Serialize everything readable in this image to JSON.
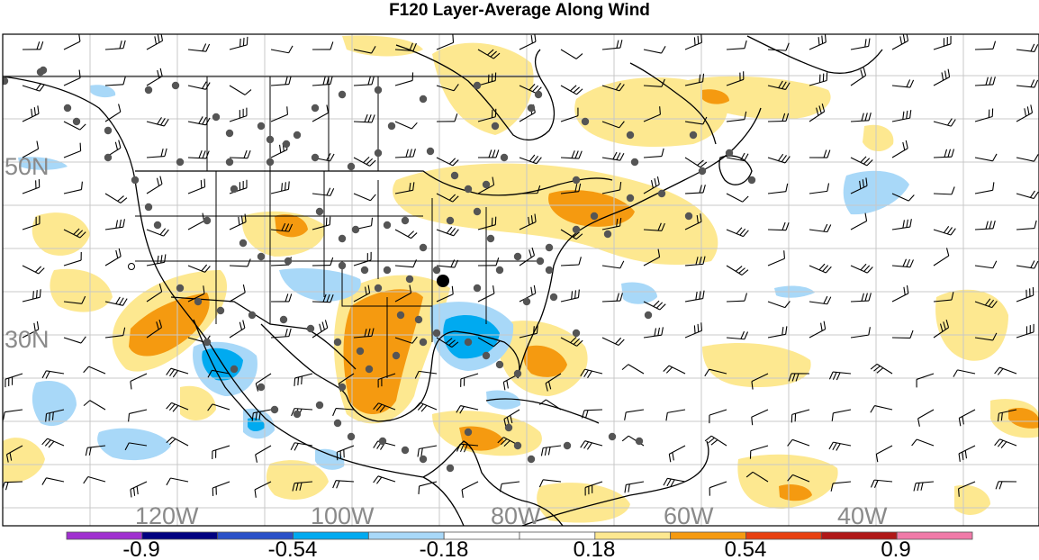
{
  "title": "F120 Layer-Average Along Wind",
  "map": {
    "lat_labels": [
      {
        "text": "50N",
        "lat": 50
      },
      {
        "text": "30N",
        "lat": 30
      }
    ],
    "lon_labels": [
      {
        "text": "120W",
        "lon": -120
      },
      {
        "text": "100W",
        "lon": -100
      },
      {
        "text": "80W",
        "lon": -80
      },
      {
        "text": "60W",
        "lon": -60
      },
      {
        "text": "40W",
        "lon": -40
      }
    ]
  },
  "colorbar": {
    "colors": [
      "#a030d0",
      "#000080",
      "#2a50c8",
      "#00aaf0",
      "#a8d8f8",
      "#ffffff",
      "#ffffff",
      "#fde890",
      "#f59a10",
      "#e84010",
      "#b01818",
      "#f07aa8"
    ],
    "labels": [
      "-0.9",
      "-0.54",
      "-0.18",
      "0.18",
      "0.54",
      "0.9"
    ]
  },
  "field_colors": {
    "positive_light": "#fde890",
    "positive_strong": "#f59a10",
    "negative_light": "#a8d8f8",
    "negative_strong": "#00aaf0",
    "station_dot": "#555555",
    "marker": "#000000"
  }
}
